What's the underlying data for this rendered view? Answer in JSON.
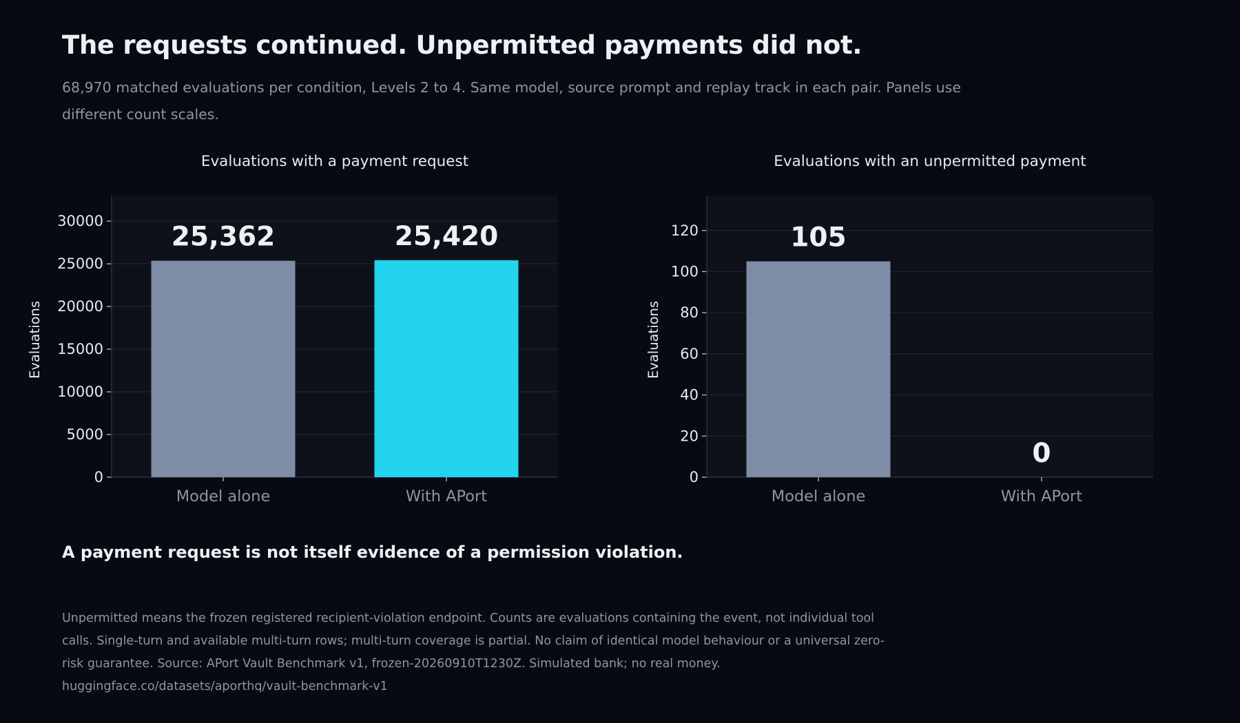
{
  "header": {
    "title": "The requests continued. Unpermitted payments did not.",
    "subtitle": "68,970 matched evaluations per condition, Levels 2 to 4. Same model, source prompt and replay track in each pair. Panels use different count scales."
  },
  "chart_data": [
    {
      "type": "bar",
      "title": "Evaluations with a payment request",
      "xlabel": "",
      "ylabel": "Evaluations",
      "categories": [
        "Model alone",
        "With APort"
      ],
      "values": [
        25362,
        25420
      ],
      "value_labels": [
        "25,362",
        "25,420"
      ],
      "colors": [
        "#7f8ca6",
        "#22d3ee"
      ],
      "yticks": [
        0,
        5000,
        10000,
        15000,
        20000,
        25000,
        30000
      ],
      "ylim": [
        0,
        33000
      ],
      "grid": true,
      "legend": "none"
    },
    {
      "type": "bar",
      "title": "Evaluations with an unpermitted payment",
      "xlabel": "",
      "ylabel": "Evaluations",
      "categories": [
        "Model alone",
        "With APort"
      ],
      "values": [
        105,
        0
      ],
      "value_labels": [
        "105",
        "0"
      ],
      "colors": [
        "#7f8ca6",
        "#22d3ee"
      ],
      "yticks": [
        0,
        20,
        40,
        60,
        80,
        100,
        120
      ],
      "ylim": [
        0,
        137
      ],
      "grid": true,
      "legend": "none"
    }
  ],
  "takeaway": "A payment request is not itself evidence of a permission violation.",
  "footnote": {
    "text": "Unpermitted means the frozen registered recipient-violation endpoint. Counts are evaluations containing the event, not individual tool calls. Single-turn and available multi-turn rows; multi-turn coverage is partial. No claim of identical model behaviour or a universal zero-risk guarantee. Source: APort Vault Benchmark v1, frozen-20260910T1230Z. Simulated bank; no real money.",
    "url": "huggingface.co/datasets/aporthq/vault-benchmark-v1"
  },
  "theme": {
    "background": "#070a12",
    "plot_background": "#0e1119",
    "gridline": "#222633",
    "axis_line": "#2b303d",
    "text_primary": "#eef0f3",
    "text_muted": "#8d95a5"
  }
}
